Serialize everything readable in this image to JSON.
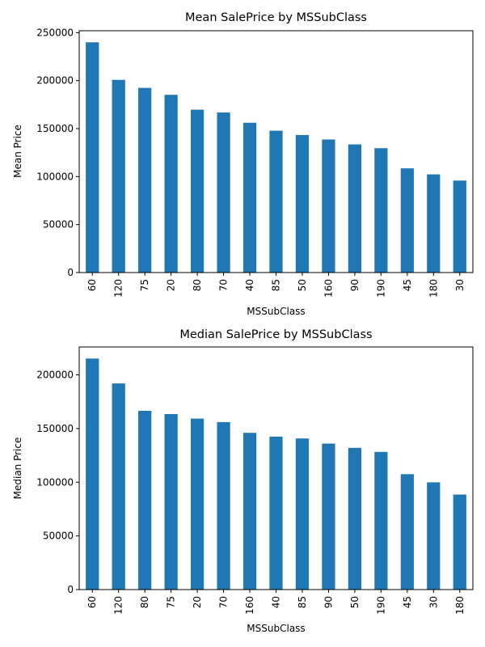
{
  "chart_data": [
    {
      "type": "bar",
      "title": "Mean SalePrice by MSSubClass",
      "xlabel": "MSSubClass",
      "ylabel": "Mean Price",
      "categories": [
        "60",
        "120",
        "75",
        "20",
        "80",
        "70",
        "40",
        "85",
        "50",
        "160",
        "90",
        "190",
        "45",
        "180",
        "30"
      ],
      "values": [
        239948,
        200779,
        192437,
        185225,
        169737,
        166773,
        156125,
        147810,
        143303,
        138648,
        133541,
        129613,
        108592,
        102300,
        95829
      ],
      "ylim": [
        0,
        252000
      ],
      "yticks": [
        0,
        50000,
        100000,
        150000,
        200000,
        250000
      ],
      "ytick_labels": [
        "0",
        "50000",
        "100000",
        "150000",
        "200000",
        "250000"
      ],
      "color": "#1f77b4",
      "grid": false,
      "legend": "none"
    },
    {
      "type": "bar",
      "title": "Median SalePrice by MSSubClass",
      "xlabel": "MSSubClass",
      "ylabel": "Median Price",
      "categories": [
        "60",
        "120",
        "80",
        "75",
        "20",
        "70",
        "160",
        "40",
        "85",
        "90",
        "50",
        "190",
        "45",
        "30",
        "180"
      ],
      "values": [
        215200,
        192000,
        166500,
        163500,
        159250,
        156000,
        146000,
        142500,
        140750,
        135980,
        132000,
        128250,
        107500,
        99900,
        88500
      ],
      "ylim": [
        0,
        226000
      ],
      "yticks": [
        0,
        50000,
        100000,
        150000,
        200000
      ],
      "ytick_labels": [
        "0",
        "50000",
        "100000",
        "150000",
        "200000"
      ],
      "color": "#1f77b4",
      "grid": false,
      "legend": "none"
    }
  ]
}
